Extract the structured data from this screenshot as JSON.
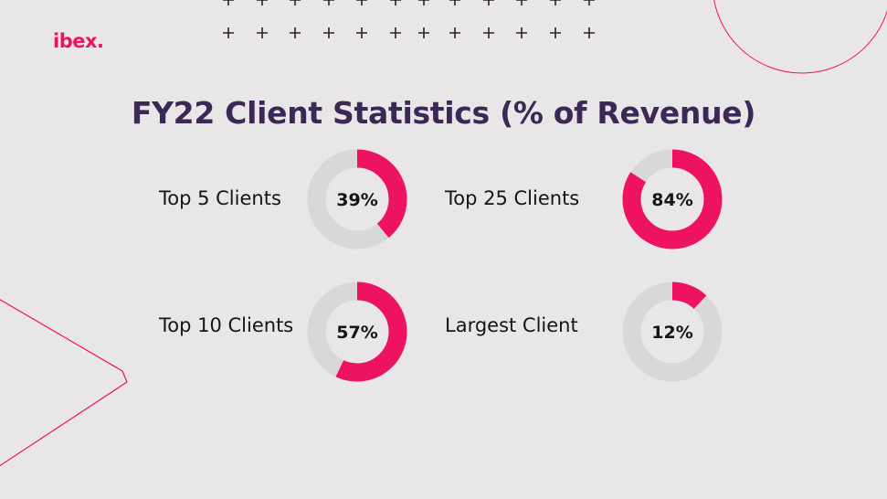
{
  "brand": {
    "logo_text": "ibex.",
    "accent_color": "#ee1263",
    "title_color": "#3c2856"
  },
  "title": "FY22 Client Statistics (% of Revenue)",
  "chart_data": {
    "type": "pie",
    "title": "FY22 Client Statistics (% of Revenue)",
    "style": "donut",
    "filled_color": "#ee1263",
    "remainder_color": "#d9d7d8",
    "items": [
      {
        "label": "Top 5 Clients",
        "value": 39,
        "value_label": "39%"
      },
      {
        "label": "Top 25 Clients",
        "value": 84,
        "value_label": "84%"
      },
      {
        "label": "Top 10 Clients",
        "value": 57,
        "value_label": "57%"
      },
      {
        "label": "Largest Client",
        "value": 12,
        "value_label": "12%"
      }
    ]
  }
}
